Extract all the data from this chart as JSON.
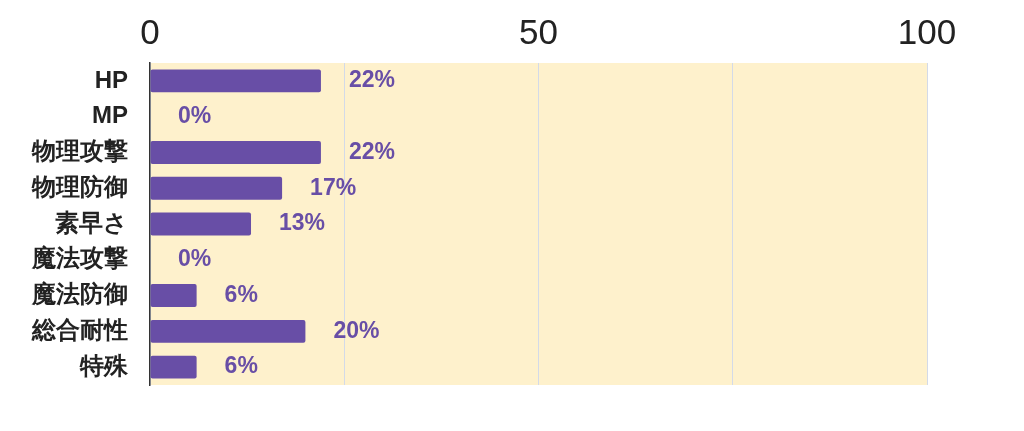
{
  "chart_data": {
    "type": "bar",
    "orientation": "horizontal",
    "categories": [
      "HP",
      "MP",
      "物理攻撃",
      "物理防御",
      "素早さ",
      "魔法攻撃",
      "魔法防御",
      "総合耐性",
      "特殊"
    ],
    "values": [
      22,
      0,
      22,
      17,
      13,
      0,
      6,
      20,
      6
    ],
    "value_labels": [
      "22%",
      "0%",
      "22%",
      "17%",
      "13%",
      "0%",
      "6%",
      "20%",
      "6%"
    ],
    "color": "#684ea6",
    "xlim": [
      0,
      100
    ],
    "xticks": [
      0,
      {
        "value": 25,
        "label": null
      },
      50,
      {
        "value": 75,
        "label": null
      },
      100
    ],
    "grid": "x"
  }
}
